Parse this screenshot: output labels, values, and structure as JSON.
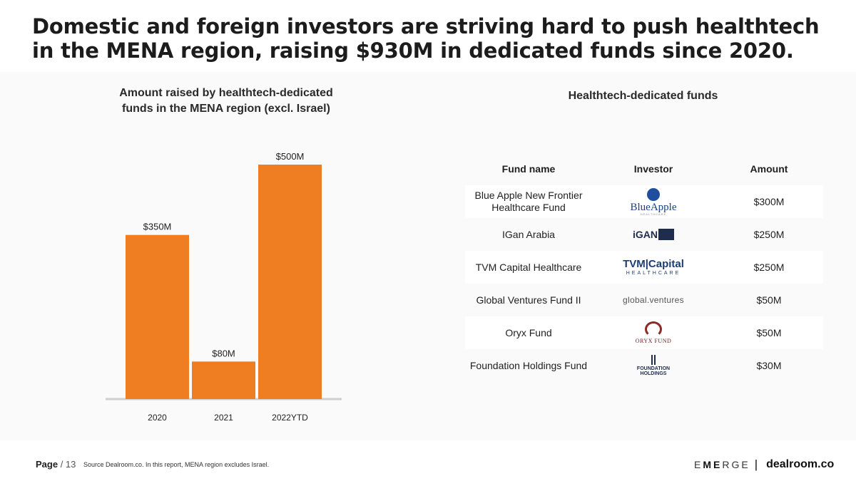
{
  "title": "Domestic and foreign investors are striving hard to push healthtech in the MENA region, raising $930M in dedicated funds since 2020.",
  "chart_data": {
    "type": "bar",
    "title": "Amount raised by healthtech-dedicated\nfunds in the MENA region (excl. Israel)",
    "categories": [
      "2020",
      "2021",
      "2022YTD"
    ],
    "values": [
      350,
      80,
      500
    ],
    "data_labels": [
      "$350M",
      "$80M",
      "$500M"
    ],
    "unit": "$M",
    "xlabel": "",
    "ylabel": "",
    "ylim": [
      0,
      500
    ],
    "grid": false,
    "bar_color": "#ef7d22"
  },
  "table": {
    "title": "Healthtech-dedicated funds",
    "headers": [
      "Fund name",
      "Investor",
      "Amount"
    ],
    "rows": [
      {
        "fund": "Blue Apple New Frontier Healthcare Fund",
        "investor_logo": "blue-apple-healthcare-logo",
        "logo_text": "BlueApple",
        "logo_sub": "HEALTHCARE",
        "amount": "$300M"
      },
      {
        "fund": "IGan Arabia",
        "investor_logo": "igan-logo",
        "logo_text": "iGAN",
        "logo_sub": "",
        "amount": "$250M"
      },
      {
        "fund": "TVM Capital Healthcare",
        "investor_logo": "tvm-capital-logo",
        "logo_text": "TVM|Capital",
        "logo_sub": "HEALTHCARE",
        "amount": "$250M"
      },
      {
        "fund": "Global Ventures Fund II",
        "investor_logo": "global-ventures-logo",
        "logo_text": "global.ventures",
        "logo_sub": "",
        "amount": "$50M"
      },
      {
        "fund": "Oryx Fund",
        "investor_logo": "oryx-fund-logo",
        "logo_text": "ORYX FUND",
        "logo_sub": "",
        "amount": "$50M"
      },
      {
        "fund": "Foundation Holdings Fund",
        "investor_logo": "foundation-holdings-logo",
        "logo_text": "FOUNDATION",
        "logo_sub": "HOLDINGS",
        "amount": "$30M"
      }
    ]
  },
  "footer": {
    "page_label": "Page",
    "page_number": "/ 13",
    "source": "Source Dealroom.co. In this report, MENA region excludes Israel.",
    "brand_emerge_1": "E",
    "brand_emerge_2": "ME",
    "brand_emerge_3": "RGE",
    "brand_separator": "|",
    "brand_dealroom": "dealroom.co"
  },
  "colors": {
    "accent": "#ef7d22",
    "band": "#fafafb"
  }
}
